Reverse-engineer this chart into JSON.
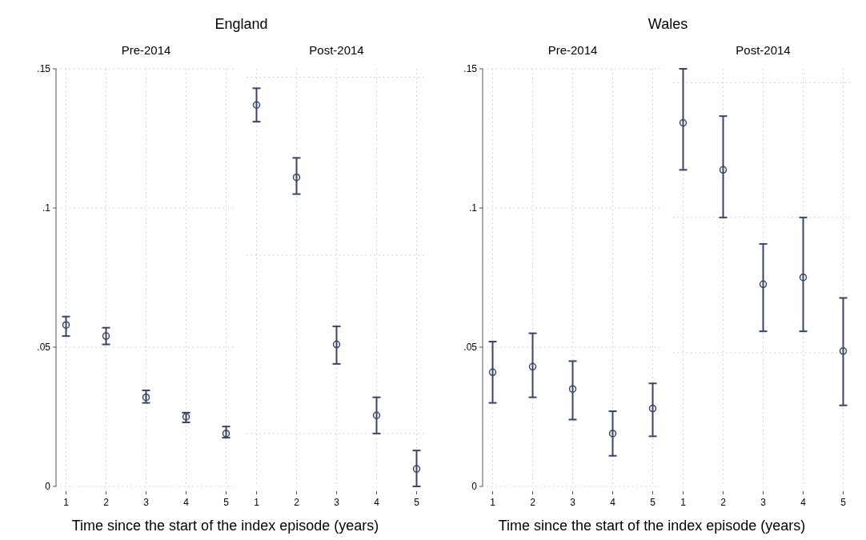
{
  "chart_data": [
    {
      "type": "scatter",
      "title": "England",
      "subtitle": "Pre-2014",
      "xlabel": "Time since the start of the index episode (years)",
      "xlim": [
        0.75,
        5.25
      ],
      "xticks": [
        1,
        2,
        3,
        4,
        5
      ],
      "ylim": [
        0,
        0.15
      ],
      "yticks": [
        {
          "value": 0,
          "label": "0"
        },
        {
          "value": 0.05,
          "label": ".05"
        },
        {
          "value": 0.1,
          "label": ".1"
        },
        {
          "value": 0.15,
          "label": ".15"
        }
      ],
      "grid": true,
      "marker": "circle",
      "series": [
        {
          "color": "#3b4466",
          "x": [
            1,
            2,
            3,
            4,
            5
          ],
          "values": [
            0.058,
            0.054,
            0.032,
            0.025,
            0.019
          ],
          "errors": [
            [
              0.054,
              0.061
            ],
            [
              0.051,
              0.057
            ],
            [
              0.03,
              0.0345
            ],
            [
              0.023,
              0.0265
            ],
            [
              0.0175,
              0.0215
            ]
          ]
        }
      ]
    },
    {
      "type": "scatter",
      "subtitle": "Post-2014",
      "xlim": [
        0.75,
        5.25
      ],
      "xticks": [
        1,
        2,
        3,
        4,
        5
      ],
      "ylim": [
        0,
        0.15
      ],
      "yticks": [
        {
          "value": 0.019,
          "label": null
        },
        {
          "value": 0.083,
          "label": null
        },
        {
          "value": 0.147,
          "label": null
        }
      ],
      "grid": true,
      "tick_labels": "x",
      "marker": "circle",
      "series": [
        {
          "color": "#3b4466",
          "x": [
            1,
            2,
            3,
            4,
            5
          ],
          "values": [
            0.137,
            0.111,
            0.051,
            0.0255,
            0.0063
          ],
          "errors": [
            [
              0.131,
              0.143
            ],
            [
              0.105,
              0.118
            ],
            [
              0.044,
              0.0575
            ],
            [
              0.019,
              0.032
            ],
            [
              0,
              0.0129
            ]
          ]
        }
      ]
    },
    {
      "type": "scatter",
      "title": "Wales",
      "subtitle": "Pre-2014",
      "xlabel": "Time since the start of the index episode (years)",
      "xlim": [
        0.75,
        5.25
      ],
      "xticks": [
        1,
        2,
        3,
        4,
        5
      ],
      "ylim": [
        0,
        0.15
      ],
      "yticks": [
        {
          "value": 0,
          "label": "0"
        },
        {
          "value": 0.05,
          "label": ".05"
        },
        {
          "value": 0.1,
          "label": ".1"
        },
        {
          "value": 0.15,
          "label": ".15"
        }
      ],
      "grid": true,
      "marker": "circle",
      "series": [
        {
          "color": "#3b4466",
          "x": [
            1,
            2,
            3,
            4,
            5
          ],
          "values": [
            0.041,
            0.043,
            0.035,
            0.019,
            0.028
          ],
          "errors": [
            [
              0.03,
              0.052
            ],
            [
              0.032,
              0.055
            ],
            [
              0.024,
              0.045
            ],
            [
              0.011,
              0.027
            ],
            [
              0.018,
              0.037
            ]
          ]
        }
      ]
    },
    {
      "type": "scatter",
      "subtitle": "Post-2014",
      "xlim": [
        0.75,
        5.25
      ],
      "xticks": [
        1,
        2,
        3,
        4,
        5
      ],
      "ylim": [
        0,
        0.15
      ],
      "yticks": [
        {
          "value": 0.048,
          "label": null
        },
        {
          "value": 0.0966,
          "label": null
        },
        {
          "value": 0.145,
          "label": null
        }
      ],
      "grid": true,
      "tick_labels": "x",
      "marker": "circle",
      "series": [
        {
          "color": "#3b4466",
          "x": [
            1,
            2,
            3,
            4,
            5
          ],
          "values": [
            0.1306,
            0.1137,
            0.0726,
            0.0751,
            0.0486
          ],
          "errors": [
            [
              0.1137,
              0.15
            ],
            [
              0.0966,
              0.133
            ],
            [
              0.0557,
              0.0871
            ],
            [
              0.0557,
              0.0966
            ],
            [
              0.0291,
              0.0677
            ]
          ]
        }
      ]
    }
  ]
}
